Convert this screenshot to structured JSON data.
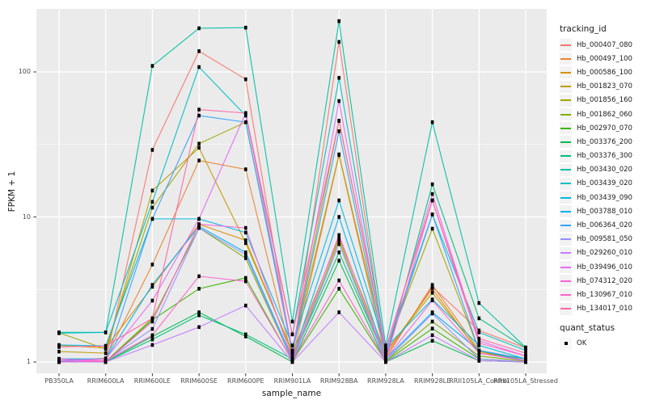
{
  "colors": {
    "panel_background": "#EBEBEB",
    "grid": "#FFFFFF",
    "tick": "#333333",
    "tick_label": "#4d4d4d",
    "text": "#1a1a1a",
    "point": "#000000",
    "legend_key_background": "#f2f2f2"
  },
  "chart_data": {
    "type": "line",
    "title": "",
    "xlabel": "sample_name",
    "ylabel": "FPKM + 1",
    "y_scale": "log10",
    "y_ticks": [
      1,
      10,
      100
    ],
    "ylim": [
      0.84,
      270
    ],
    "grid": true,
    "legend_position": "right",
    "legend_titles": {
      "series": "tracking_id",
      "points": "quant_status"
    },
    "point_legend": {
      "label": "OK",
      "shape": "square",
      "color": "#000000"
    },
    "categories": [
      "PB350LA",
      "RRIM600LA",
      "RRIM600LE",
      "RRIM600SE",
      "RRIM600PE",
      "RRIM901LA",
      "RRIM928BA",
      "RRIM928LA",
      "RRIM928LE",
      "RRII105LA_Control",
      "RRII105LA_Stressed"
    ],
    "series": [
      {
        "name": "Hb_000407_080",
        "color": "#F8766D",
        "values": [
          1.05,
          1.02,
          29,
          139,
          89,
          1.1,
          161,
          1.1,
          3.3,
          1.65,
          1.25
        ]
      },
      {
        "name": "Hb_000497_100",
        "color": "#EA8331",
        "values": [
          1.02,
          1.06,
          4.7,
          24.5,
          21.3,
          1.05,
          26.7,
          1.06,
          3.4,
          1.2,
          1.02
        ]
      },
      {
        "name": "Hb_000586_100",
        "color": "#D89000",
        "values": [
          1.3,
          1.25,
          3.3,
          8.9,
          6.9,
          1.15,
          7.2,
          1.15,
          3.2,
          1.15,
          1.05
        ]
      },
      {
        "name": "Hb_001823_070",
        "color": "#C09B00",
        "values": [
          1.18,
          1.15,
          15.2,
          30,
          6.6,
          1.18,
          27,
          1.18,
          3.0,
          1.18,
          1.02
        ]
      },
      {
        "name": "Hb_001856_160",
        "color": "#A3A500",
        "values": [
          1.59,
          1.23,
          11.6,
          32,
          45,
          1.2,
          46,
          1.2,
          8.3,
          1.2,
          1.05
        ]
      },
      {
        "name": "Hb_001862_060",
        "color": "#7CAE00",
        "values": [
          1.01,
          1.01,
          2.0,
          8.4,
          5.2,
          1.02,
          6.9,
          1.02,
          1.9,
          1.1,
          1.01
        ]
      },
      {
        "name": "Hb_002970_070",
        "color": "#39B600",
        "values": [
          1.0,
          1.0,
          1.95,
          3.2,
          3.8,
          1.01,
          3.2,
          1.01,
          1.7,
          1.05,
          1.0
        ]
      },
      {
        "name": "Hb_003376_200",
        "color": "#00BB4E",
        "values": [
          1.0,
          1.0,
          1.5,
          2.2,
          1.5,
          1.0,
          5.0,
          1.0,
          1.4,
          1.02,
          1.0
        ]
      },
      {
        "name": "Hb_003376_300",
        "color": "#00BF7D",
        "values": [
          1.01,
          1.0,
          1.43,
          2.1,
          1.55,
          1.05,
          5.7,
          1.05,
          16.8,
          2.0,
          1.25
        ]
      },
      {
        "name": "Hb_003430_020",
        "color": "#00C1A3",
        "values": [
          1.6,
          1.6,
          110,
          200,
          202,
          1.9,
          224,
          1.3,
          45,
          2.55,
          1.26
        ]
      },
      {
        "name": "Hb_003439_020",
        "color": "#00BFC4",
        "values": [
          1.58,
          1.6,
          12.7,
          108,
          50,
          1.55,
          91,
          1.2,
          10.4,
          1.6,
          1.2
        ]
      },
      {
        "name": "Hb_003439_090",
        "color": "#00BAE0",
        "values": [
          1.31,
          1.29,
          9.7,
          9.7,
          7.8,
          1.3,
          13.0,
          1.25,
          2.7,
          1.3,
          1.05
        ]
      },
      {
        "name": "Hb_003788_010",
        "color": "#00B0F6",
        "values": [
          1.05,
          1.05,
          3.4,
          8.6,
          5.7,
          1.05,
          10.0,
          1.05,
          2.2,
          1.2,
          1.02
        ]
      },
      {
        "name": "Hb_006364_020",
        "color": "#35A2FF",
        "values": [
          1.02,
          1.0,
          9.7,
          50,
          45,
          1.15,
          39,
          1.1,
          10.4,
          1.2,
          1.05
        ]
      },
      {
        "name": "Hb_009581_050",
        "color": "#9590FF",
        "values": [
          1.0,
          1.02,
          1.69,
          8.4,
          5.5,
          1.02,
          6.5,
          1.02,
          2.16,
          1.05,
          1.0
        ]
      },
      {
        "name": "Hb_029260_010",
        "color": "#C77CFF",
        "values": [
          1.0,
          1.0,
          1.31,
          1.74,
          2.45,
          1.0,
          2.2,
          1.0,
          1.53,
          1.02,
          1.0
        ]
      },
      {
        "name": "Hb_039496_010",
        "color": "#E76BF3",
        "values": [
          1.02,
          1.05,
          2.65,
          9.7,
          52,
          1.2,
          63,
          1.15,
          14.4,
          1.4,
          1.1
        ]
      },
      {
        "name": "Hb_074312_020",
        "color": "#FA62DB",
        "values": [
          1.05,
          1.0,
          1.9,
          8.9,
          8.4,
          1.05,
          7.5,
          1.05,
          2.66,
          1.15,
          1.02
        ]
      },
      {
        "name": "Hb_130967_010",
        "color": "#FF61CC",
        "values": [
          1.0,
          1.02,
          1.53,
          3.9,
          3.6,
          1.02,
          3.65,
          1.02,
          13.0,
          1.35,
          1.1
        ]
      },
      {
        "name": "Hb_134017_010",
        "color": "#FF67A4",
        "values": [
          1.27,
          1.29,
          2.0,
          55,
          52,
          1.55,
          46,
          1.25,
          13.0,
          1.45,
          1.15
        ]
      }
    ]
  }
}
